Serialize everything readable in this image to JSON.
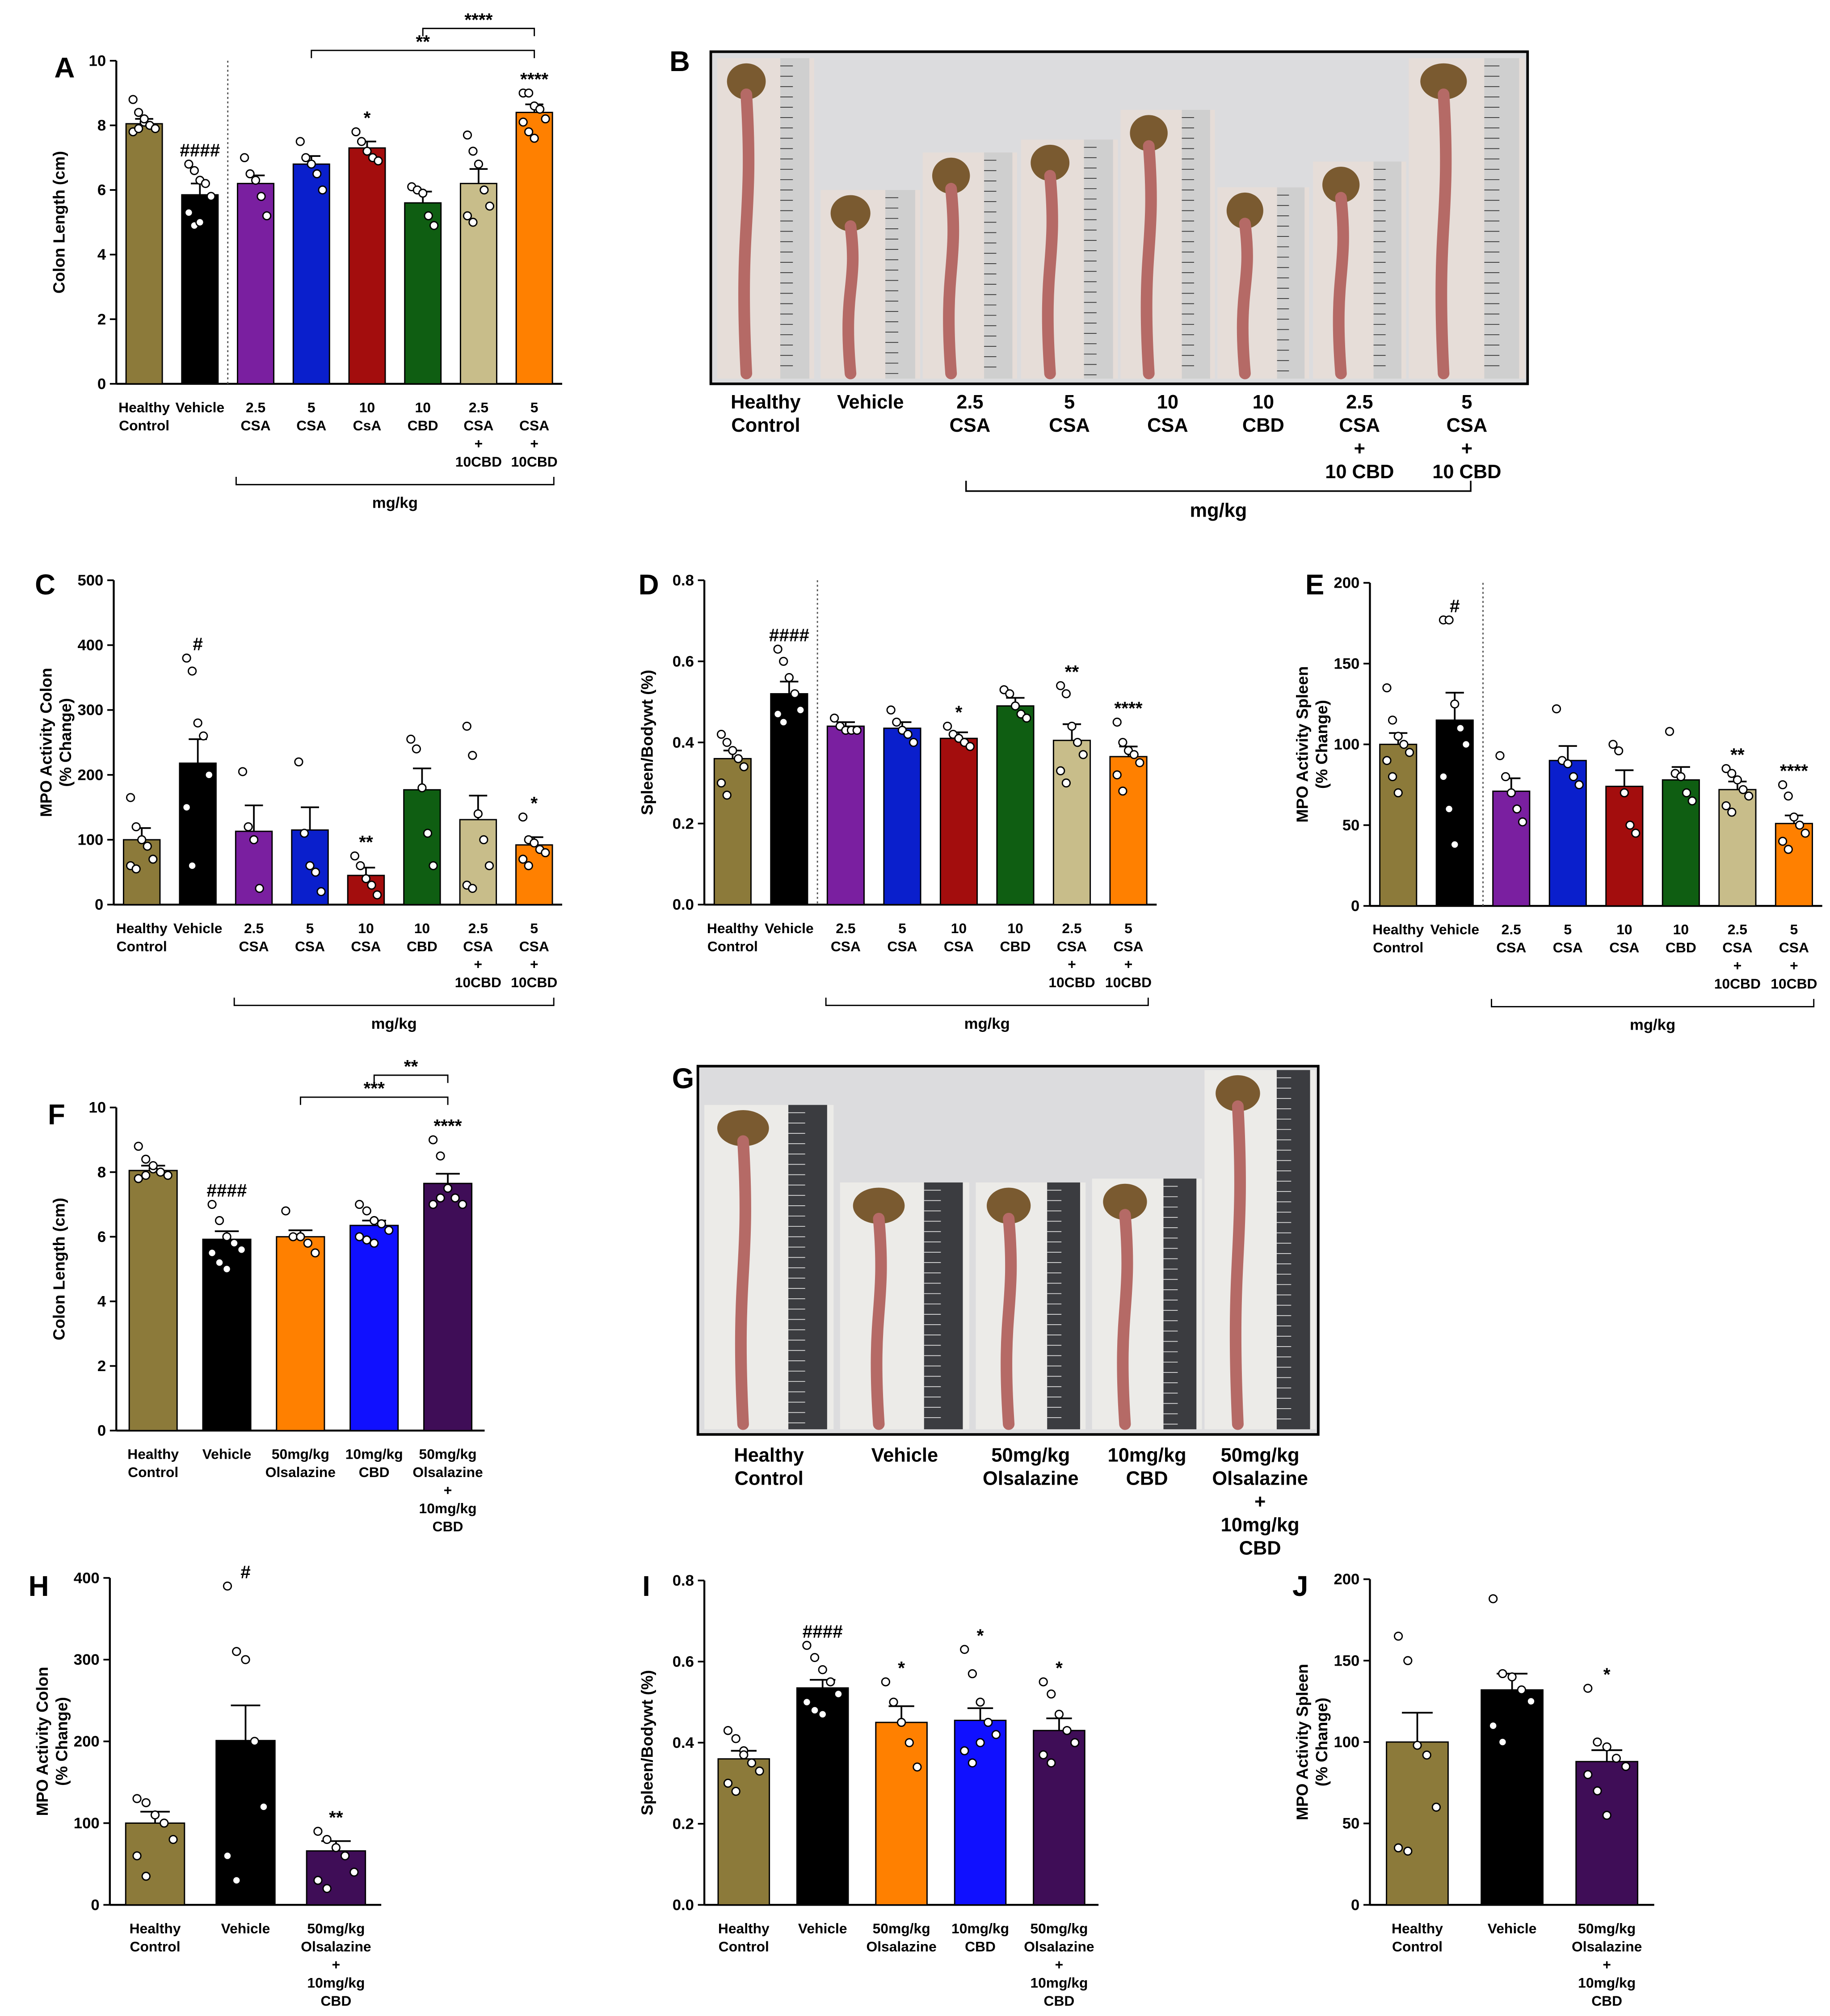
{
  "chart_data": [
    {
      "type": "bar",
      "panel": "A",
      "y_label": [
        "Colon Length (cm)"
      ],
      "ylim": [
        0,
        10
      ],
      "yticks": [
        0,
        2,
        4,
        6,
        8,
        10
      ],
      "categories": [
        [
          "Healthy",
          "Control"
        ],
        [
          "Vehicle"
        ],
        [
          "2.5",
          "CSA"
        ],
        [
          "5",
          "CSA"
        ],
        [
          "10",
          "CsA"
        ],
        [
          "10",
          "CBD"
        ],
        [
          "2.5",
          "CSA",
          "+",
          "10CBD"
        ],
        [
          "5",
          "CSA",
          "+",
          "10CBD"
        ]
      ],
      "colors": [
        "#8c7a3a",
        "#000000",
        "#7a1fa0",
        "#0a1fcc",
        "#a30d0d",
        "#0f5e12",
        "#c8bd8a",
        "#ff8000"
      ],
      "values": [
        8.05,
        5.85,
        6.2,
        6.8,
        7.3,
        5.6,
        6.2,
        8.4
      ],
      "errors": [
        0.15,
        0.35,
        0.25,
        0.25,
        0.2,
        0.35,
        0.45,
        0.25
      ],
      "points": [
        [
          8.8,
          8.4,
          8.1,
          8.0,
          7.9,
          7.8,
          7.9,
          8.2
        ],
        [
          6.8,
          6.6,
          6.3,
          6.2,
          5.8,
          5.3,
          4.9,
          5.0
        ],
        [
          7.0,
          6.5,
          6.3,
          5.8,
          5.2
        ],
        [
          7.5,
          7.0,
          6.8,
          6.5,
          6.0
        ],
        [
          7.8,
          7.5,
          7.2,
          7.0,
          6.9
        ],
        [
          6.1,
          6.0,
          5.9,
          5.2,
          4.9
        ],
        [
          7.7,
          7.2,
          6.8,
          6.0,
          5.5,
          5.2,
          5.0
        ],
        [
          9.0,
          9.0,
          8.6,
          8.5,
          8.2,
          8.1,
          7.8,
          7.6
        ]
      ],
      "significance": [
        null,
        "####",
        null,
        null,
        "*",
        null,
        null,
        "****"
      ],
      "divider_after": 1,
      "group": {
        "from": 2,
        "to": 7,
        "label": "mg/kg"
      },
      "comparisons": [
        {
          "from": 3,
          "to": 7,
          "label": "**"
        },
        {
          "from": 5,
          "to": 7,
          "label": "****"
        }
      ]
    },
    {
      "type": "bar",
      "panel": "C",
      "y_label": [
        "MPO Activity Colon",
        "(% Change)"
      ],
      "ylim": [
        0,
        500
      ],
      "yticks": [
        0,
        100,
        200,
        300,
        400,
        500
      ],
      "categories": [
        [
          "Healthy",
          "Control"
        ],
        [
          "Vehicle"
        ],
        [
          "2.5",
          "CSA"
        ],
        [
          "5",
          "CSA"
        ],
        [
          "10",
          "CSA"
        ],
        [
          "10",
          "CBD"
        ],
        [
          "2.5",
          "CSA",
          "+",
          "10CBD"
        ],
        [
          "5",
          "CSA",
          "+",
          "10CBD"
        ]
      ],
      "colors": [
        "#8c7a3a",
        "#000000",
        "#7a1fa0",
        "#0a1fcc",
        "#a30d0d",
        "#0f5e12",
        "#c8bd8a",
        "#ff8000"
      ],
      "values": [
        100,
        218,
        113,
        115,
        45,
        177,
        131,
        92
      ],
      "errors": [
        18,
        37,
        40,
        35,
        12,
        33,
        37,
        12
      ],
      "points": [
        [
          165,
          120,
          100,
          90,
          70,
          60,
          55
        ],
        [
          380,
          360,
          280,
          260,
          200,
          150,
          60
        ],
        [
          205,
          120,
          100,
          25
        ],
        [
          220,
          110,
          60,
          50,
          20
        ],
        [
          75,
          60,
          40,
          30,
          15
        ],
        [
          255,
          240,
          180,
          110,
          60
        ],
        [
          275,
          230,
          140,
          100,
          60,
          30,
          25
        ],
        [
          135,
          100,
          95,
          85,
          80,
          70,
          60
        ]
      ],
      "significance": [
        null,
        "#",
        null,
        null,
        "**",
        null,
        null,
        "*"
      ],
      "group": {
        "from": 2,
        "to": 7,
        "label": "mg/kg"
      }
    },
    {
      "type": "bar",
      "panel": "D",
      "y_label": [
        "Spleen/Bodywt (%)"
      ],
      "ylim": [
        0,
        0.8
      ],
      "yticks": [
        {
          "value": 0,
          "label": "0.0"
        },
        0.2,
        0.4,
        0.6,
        0.8
      ],
      "categories": [
        [
          "Healthy",
          "Control"
        ],
        [
          "Vehicle"
        ],
        [
          "2.5",
          "CSA"
        ],
        [
          "5",
          "CSA"
        ],
        [
          "10",
          "CSA"
        ],
        [
          "10",
          "CBD"
        ],
        [
          "2.5",
          "CSA",
          "+",
          "10CBD"
        ],
        [
          "5",
          "CSA",
          "+",
          "10CBD"
        ]
      ],
      "colors": [
        "#8c7a3a",
        "#000000",
        "#7a1fa0",
        "#0a1fcc",
        "#a30d0d",
        "#0f5e12",
        "#c8bd8a",
        "#ff8000"
      ],
      "values": [
        0.36,
        0.52,
        0.44,
        0.435,
        0.41,
        0.49,
        0.405,
        0.365
      ],
      "errors": [
        0.02,
        0.03,
        0.01,
        0.015,
        0.015,
        0.02,
        0.04,
        0.025
      ],
      "points": [
        [
          0.42,
          0.4,
          0.38,
          0.36,
          0.34,
          0.3,
          0.27
        ],
        [
          0.63,
          0.6,
          0.56,
          0.52,
          0.48,
          0.47,
          0.45
        ],
        [
          0.46,
          0.44,
          0.43,
          0.43,
          0.43
        ],
        [
          0.48,
          0.45,
          0.43,
          0.42,
          0.4
        ],
        [
          0.44,
          0.42,
          0.41,
          0.4,
          0.39
        ],
        [
          0.53,
          0.52,
          0.49,
          0.47,
          0.46
        ],
        [
          0.54,
          0.52,
          0.44,
          0.4,
          0.37,
          0.33,
          0.3
        ],
        [
          0.45,
          0.4,
          0.38,
          0.37,
          0.35,
          0.32,
          0.28
        ]
      ],
      "significance": [
        null,
        "####",
        null,
        null,
        "*",
        null,
        "**",
        "****"
      ],
      "divider_after": 1,
      "group": {
        "from": 2,
        "to": 7,
        "label": "mg/kg"
      }
    },
    {
      "type": "bar",
      "panel": "E",
      "y_label": [
        "MPO Activity Spleen",
        "(% Change)"
      ],
      "ylim": [
        0,
        200
      ],
      "yticks": [
        0,
        50,
        100,
        150,
        200
      ],
      "categories": [
        [
          "Healthy",
          "Control"
        ],
        [
          "Vehicle"
        ],
        [
          "2.5",
          "CSA"
        ],
        [
          "5",
          "CSA"
        ],
        [
          "10",
          "CSA"
        ],
        [
          "10",
          "CBD"
        ],
        [
          "2.5",
          "CSA",
          "+",
          "10CBD"
        ],
        [
          "5",
          "CSA",
          "+",
          "10CBD"
        ]
      ],
      "colors": [
        "#8c7a3a",
        "#000000",
        "#7a1fa0",
        "#0a1fcc",
        "#a30d0d",
        "#0f5e12",
        "#c8bd8a",
        "#ff8000"
      ],
      "values": [
        100,
        115,
        71,
        90,
        74,
        78,
        72,
        51
      ],
      "errors": [
        7,
        17,
        8,
        9,
        10,
        8,
        5,
        5
      ],
      "points": [
        [
          135,
          115,
          105,
          100,
          95,
          90,
          80,
          70
        ],
        [
          177,
          177,
          125,
          110,
          100,
          80,
          60,
          38
        ],
        [
          93,
          80,
          70,
          60,
          52
        ],
        [
          122,
          90,
          88,
          80,
          75
        ],
        [
          100,
          96,
          70,
          50,
          45
        ],
        [
          108,
          82,
          80,
          70,
          65
        ],
        [
          85,
          82,
          78,
          72,
          68,
          62,
          58
        ],
        [
          75,
          68,
          55,
          50,
          45,
          40,
          35
        ]
      ],
      "significance": [
        null,
        "#",
        null,
        null,
        null,
        null,
        "**",
        "****"
      ],
      "divider_after": 1,
      "group": {
        "from": 2,
        "to": 7,
        "label": "mg/kg"
      }
    },
    {
      "type": "bar",
      "panel": "F",
      "y_label": [
        "Colon Length (cm)"
      ],
      "ylim": [
        0,
        10
      ],
      "yticks": [
        0,
        2,
        4,
        6,
        8,
        10
      ],
      "categories": [
        [
          "Healthy",
          "Control"
        ],
        [
          "Vehicle"
        ],
        [
          "50mg/kg",
          "Olsalazine"
        ],
        [
          "10mg/kg",
          "CBD"
        ],
        [
          "50mg/kg",
          "Olsalazine",
          "+",
          "10mg/kg",
          "CBD"
        ]
      ],
      "colors": [
        "#8c7a3a",
        "#000000",
        "#ff8000",
        "#1010ff",
        "#3f0d57"
      ],
      "values": [
        8.05,
        5.92,
        6.0,
        6.35,
        7.65
      ],
      "errors": [
        0.15,
        0.25,
        0.2,
        0.15,
        0.3
      ],
      "points": [
        [
          8.8,
          8.4,
          8.1,
          8.0,
          7.9,
          7.8,
          7.9,
          8.2
        ],
        [
          7.0,
          6.5,
          6.0,
          5.8,
          5.6,
          5.5,
          5.2,
          5.0
        ],
        [
          6.8,
          6.0,
          6.0,
          5.8,
          5.5
        ],
        [
          7.0,
          6.8,
          6.5,
          6.4,
          6.2,
          6.0,
          5.9,
          5.8
        ],
        [
          9.0,
          8.5,
          7.5,
          7.2,
          7.0,
          7.0,
          7.2
        ]
      ],
      "significance": [
        null,
        "####",
        null,
        null,
        "****"
      ],
      "comparisons": [
        {
          "from": 2,
          "to": 4,
          "label": "***"
        },
        {
          "from": 3,
          "to": 4,
          "label": "**"
        }
      ]
    },
    {
      "type": "bar",
      "panel": "H",
      "y_label": [
        "MPO Activity Colon",
        "(% Change)"
      ],
      "ylim": [
        0,
        400
      ],
      "yticks": [
        0,
        100,
        200,
        300,
        400
      ],
      "categories": [
        [
          "Healthy",
          "Control"
        ],
        [
          "Vehicle"
        ],
        [
          "50mg/kg",
          "Olsalazine",
          "+",
          "10mg/kg",
          "CBD"
        ]
      ],
      "colors": [
        "#8c7a3a",
        "#000000",
        "#3f0d57"
      ],
      "values": [
        100,
        201,
        66
      ],
      "errors": [
        14,
        43,
        12
      ],
      "points": [
        [
          130,
          125,
          110,
          100,
          80,
          60,
          35
        ],
        [
          390,
          310,
          300,
          200,
          120,
          60,
          30
        ],
        [
          90,
          80,
          70,
          60,
          40,
          30,
          20
        ]
      ],
      "significance": [
        null,
        "#",
        "**"
      ]
    },
    {
      "type": "bar",
      "panel": "I",
      "y_label": [
        "Spleen/Bodywt (%)"
      ],
      "ylim": [
        0,
        0.8
      ],
      "yticks": [
        {
          "value": 0,
          "label": "0.0"
        },
        0.2,
        0.4,
        0.6,
        0.8
      ],
      "categories": [
        [
          "Healthy",
          "Control"
        ],
        [
          "Vehicle"
        ],
        [
          "50mg/kg",
          "Olsalazine"
        ],
        [
          "10mg/kg",
          "CBD"
        ],
        [
          "50mg/kg",
          "Olsalazine",
          "+",
          "10mg/kg",
          "CBD"
        ]
      ],
      "colors": [
        "#8c7a3a",
        "#000000",
        "#ff8000",
        "#1010ff",
        "#3f0d57"
      ],
      "values": [
        0.36,
        0.535,
        0.45,
        0.455,
        0.43
      ],
      "errors": [
        0.02,
        0.02,
        0.04,
        0.03,
        0.03
      ],
      "points": [
        [
          0.43,
          0.41,
          0.38,
          0.35,
          0.33,
          0.3,
          0.28,
          0.37
        ],
        [
          0.64,
          0.61,
          0.58,
          0.55,
          0.52,
          0.5,
          0.48,
          0.47
        ],
        [
          0.55,
          0.5,
          0.45,
          0.4,
          0.34
        ],
        [
          0.63,
          0.57,
          0.5,
          0.45,
          0.42,
          0.38,
          0.35,
          0.4
        ],
        [
          0.55,
          0.52,
          0.47,
          0.43,
          0.4,
          0.37,
          0.35
        ]
      ],
      "significance": [
        null,
        "####",
        "*",
        "*",
        "*"
      ]
    },
    {
      "type": "bar",
      "panel": "J",
      "y_label": [
        "MPO Activity Spleen",
        "(% Change)"
      ],
      "ylim": [
        0,
        200
      ],
      "yticks": [
        0,
        50,
        100,
        150,
        200
      ],
      "categories": [
        [
          "Healthy",
          "Control"
        ],
        [
          "Vehicle"
        ],
        [
          "50mg/kg",
          "Olsalazine",
          "+",
          "10mg/kg",
          "CBD"
        ]
      ],
      "colors": [
        "#8c7a3a",
        "#000000",
        "#3f0d57"
      ],
      "values": [
        100,
        132,
        88
      ],
      "errors": [
        18,
        10,
        7
      ],
      "points": [
        [
          165,
          150,
          98,
          92,
          60,
          35,
          33
        ],
        [
          188,
          142,
          140,
          132,
          125,
          110,
          100
        ],
        [
          133,
          100,
          97,
          90,
          85,
          80,
          70,
          55
        ]
      ],
      "significance": [
        null,
        null,
        "*"
      ]
    }
  ],
  "photo_panels": [
    {
      "panel": "B",
      "labels": [
        [
          "Healthy",
          "Control"
        ],
        [
          "Vehicle"
        ],
        [
          "2.5",
          "CSA"
        ],
        [
          "5",
          "CSA"
        ],
        [
          "10",
          "CSA"
        ],
        [
          "10",
          "CBD"
        ],
        [
          "2.5",
          "CSA",
          "+",
          "10 CBD"
        ],
        [
          "5",
          "CSA",
          "+",
          "10 CBD"
        ]
      ],
      "group": {
        "from": 2,
        "to": 7,
        "label": "mg/kg"
      }
    },
    {
      "panel": "G",
      "labels": [
        [
          "Healthy",
          "Control"
        ],
        [
          "Vehicle"
        ],
        [
          "50mg/kg",
          "Olsalazine"
        ],
        [
          "10mg/kg",
          "CBD"
        ],
        [
          "50mg/kg",
          "Olsalazine",
          "+",
          "10mg/kg",
          "CBD"
        ]
      ]
    }
  ]
}
